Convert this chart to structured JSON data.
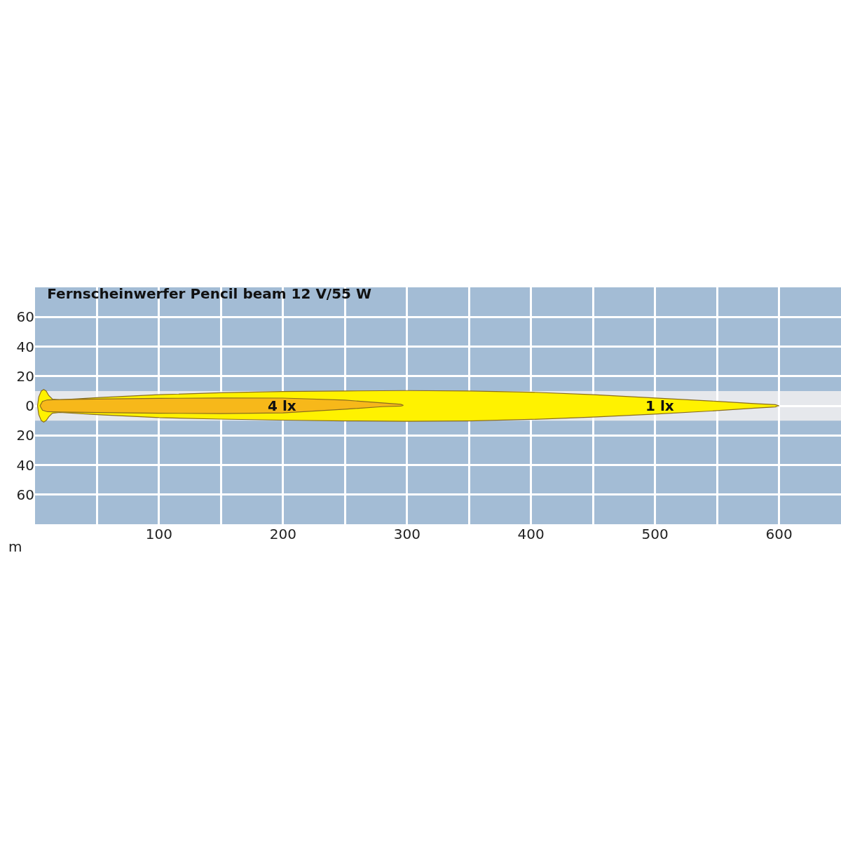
{
  "chart_data": {
    "type": "area",
    "title": "Fernscheinwerfer Pencil beam 12 V/55 W",
    "xlabel": "m",
    "xlim": [
      0,
      650
    ],
    "ylim": [
      -80,
      80
    ],
    "xticks": [
      {
        "value": 50,
        "label": null
      },
      100,
      {
        "value": 150,
        "label": null
      },
      200,
      {
        "value": 250,
        "label": null
      },
      300,
      {
        "value": 350,
        "label": null
      },
      400,
      {
        "value": 450,
        "label": null
      },
      500,
      {
        "value": 550,
        "label": null
      },
      600
    ],
    "yticks": [
      {
        "value": -60,
        "label": "60"
      },
      {
        "value": -40,
        "label": "40"
      },
      {
        "value": -20,
        "label": "20"
      },
      0,
      20,
      40,
      60
    ],
    "grid": true,
    "bands": [
      {
        "axis": "y",
        "from": -10,
        "to": 10,
        "color": "#e6e8ec"
      }
    ],
    "series": [
      {
        "name": "1 lx",
        "color": "#fff200",
        "x": [
          2,
          3,
          5,
          7,
          9,
          11,
          14,
          20,
          50,
          100,
          150,
          200,
          250,
          300,
          350,
          400,
          450,
          500,
          550,
          580,
          597,
          600,
          597,
          580,
          550,
          500,
          450,
          400,
          350,
          300,
          250,
          200,
          150,
          100,
          50,
          20,
          14,
          11,
          9,
          7,
          5,
          3,
          2
        ],
        "values": [
          0,
          6,
          10,
          11,
          10,
          7,
          4.5,
          4,
          5.5,
          7.5,
          8.8,
          9.6,
          10,
          10.3,
          10,
          9.2,
          7.5,
          5.3,
          3,
          1.5,
          0.8,
          0,
          -0.8,
          -1.6,
          -3.3,
          -5.6,
          -7.6,
          -9.2,
          -10.2,
          -10.5,
          -10.2,
          -9.7,
          -9,
          -8,
          -6,
          -4.5,
          -5,
          -7.5,
          -10,
          -11,
          -10,
          -6,
          0
        ]
      },
      {
        "name": "4 lx",
        "color": "#f7b81a",
        "x": [
          4,
          6,
          10,
          20,
          50,
          100,
          150,
          200,
          250,
          280,
          295,
          297,
          295,
          280,
          250,
          200,
          150,
          100,
          50,
          20,
          10,
          6,
          4
        ],
        "values": [
          0,
          3,
          4,
          4.2,
          4.6,
          5,
          5.3,
          5.2,
          3.8,
          2,
          1,
          0.3,
          -0.2,
          -0.6,
          -2.3,
          -4.8,
          -5.3,
          -5,
          -4.6,
          -4.2,
          -4,
          -3,
          0
        ]
      }
    ]
  }
}
